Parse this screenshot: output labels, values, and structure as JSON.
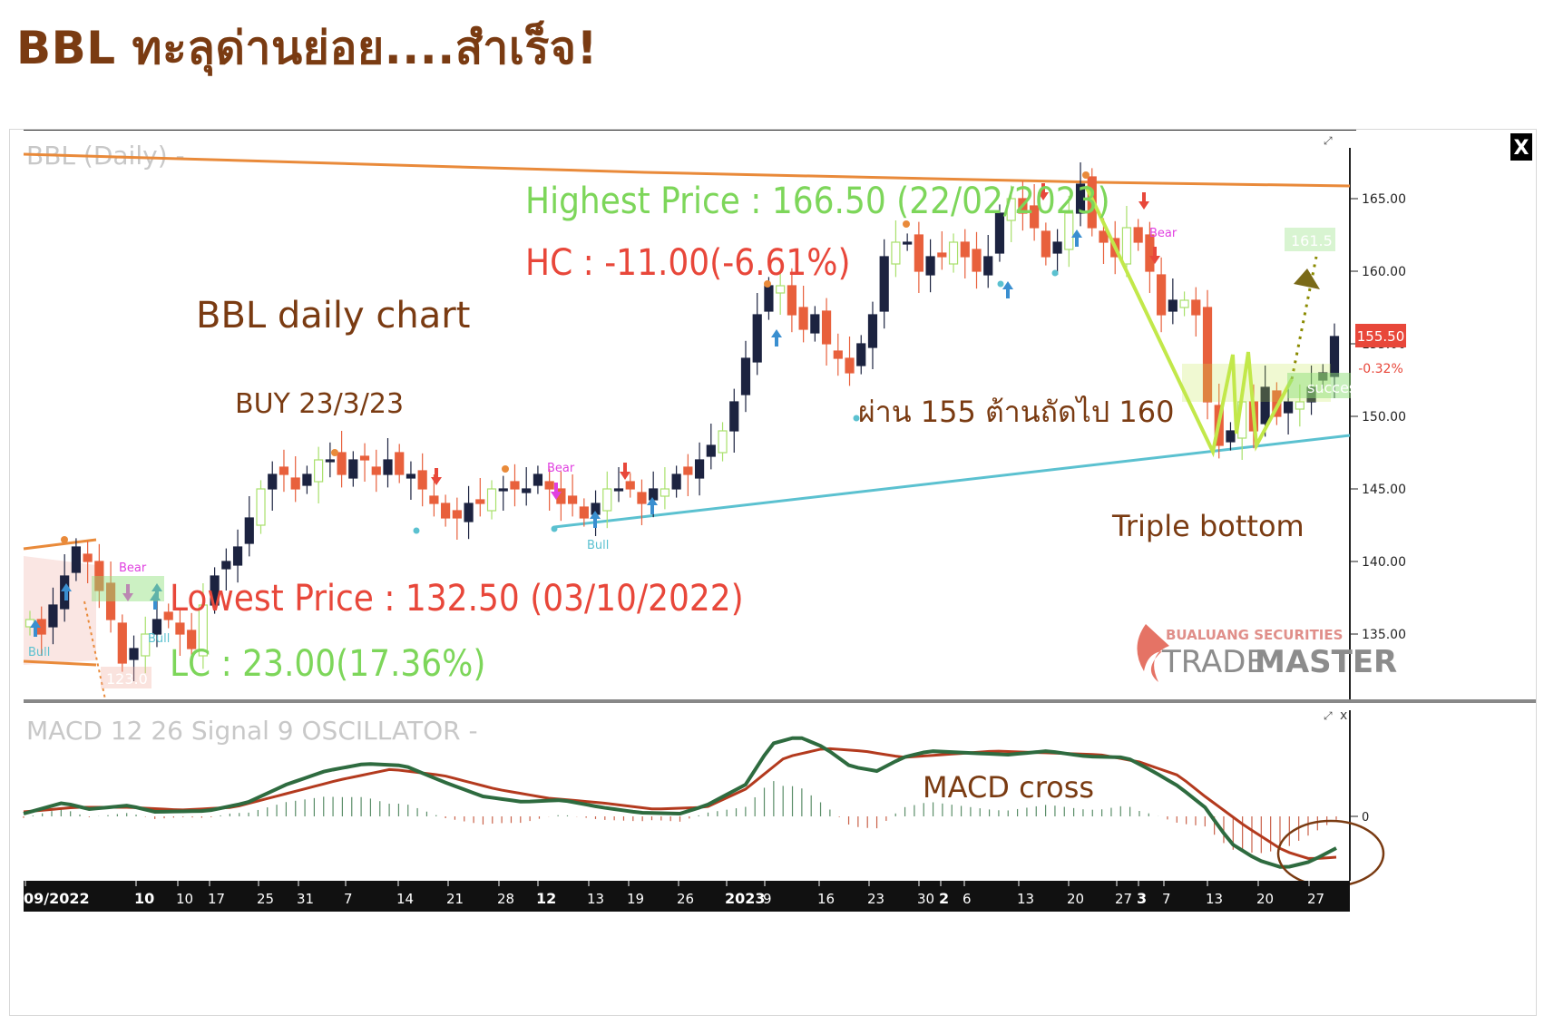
{
  "page_title": "BBL ทะลุด่านย่อย....สำเร็จ!",
  "panel": {
    "price_label": "BBL (Daily) -",
    "macd_label": "MACD 12 26 Signal 9 OSCILLATOR -",
    "close_button": "X"
  },
  "annotations": {
    "highest": "Highest Price : 166.50 (22/02/2023)",
    "hc": "HC : -11.00(-6.61%)",
    "lowest": "Lowest Price : 132.50 (03/10/2022)",
    "lc": "LC : 23.00(17.36%)",
    "daily_chart": "BBL daily chart",
    "buy": "BUY 23/3/23",
    "resist": "ผ่าน 155 ต้านถัดไป 160",
    "triple": "Triple bottom",
    "macd_cross": "MACD cross",
    "bear": "Bear",
    "bull": "Bull",
    "success": "success",
    "target_tag": "161.5",
    "stop_tag": "123.0"
  },
  "current_price": {
    "value": "155.50",
    "change": "-0.32%"
  },
  "watermark": {
    "line1": "BUALUANG SECURITIES",
    "line2a": "TRADE",
    "line2b": "MASTER"
  },
  "colors": {
    "up": "#1c2340",
    "down": "#e8603c",
    "up_alt": "#a8e06b",
    "macd": "#2e6b3f",
    "signal": "#b33a1e",
    "trend_high": "#e98a3a",
    "trend_low": "#5bc1d0",
    "pattern": "#c2e84a",
    "brown": "#7a3b12"
  },
  "chart_data": {
    "type": "candlestick",
    "title": "BBL (Daily)",
    "y_ticks": [
      "165.00",
      "160.00",
      "155.00",
      "150.00",
      "145.00",
      "140.00",
      "135.00"
    ],
    "ylim": [
      130.5,
      168.5
    ],
    "x_ticks": [
      "09/2022",
      "10",
      "10",
      "17",
      "25",
      "31",
      "7",
      "14",
      "21",
      "28",
      "12",
      "13",
      "19",
      "26",
      "2023",
      "9",
      "16",
      "23",
      "30",
      "2",
      "6",
      "13",
      "20",
      "27",
      "3",
      "7",
      "13",
      "20",
      "27"
    ],
    "close_series": [
      136,
      135,
      137,
      139,
      141,
      140,
      138,
      136,
      133,
      134,
      135,
      136,
      136,
      135,
      134,
      137,
      139,
      140,
      141,
      143,
      145,
      146,
      146,
      145,
      146,
      147,
      147,
      146,
      147,
      147,
      146,
      147,
      146,
      146,
      145,
      144,
      143,
      143,
      144,
      144,
      145,
      145,
      145,
      145,
      146,
      145,
      144,
      144,
      143,
      144,
      145,
      145,
      145,
      144,
      145,
      145,
      146,
      146,
      147,
      148,
      149,
      151,
      154,
      157,
      159,
      159,
      157,
      156,
      157,
      155,
      154,
      153,
      155,
      157,
      161,
      162,
      162,
      160,
      161,
      161,
      162,
      161,
      160,
      161,
      164,
      165,
      164,
      163,
      161,
      162,
      164,
      166,
      163,
      162,
      161,
      163,
      162,
      160,
      157,
      158,
      158,
      157,
      151,
      148,
      149,
      151,
      149,
      152,
      150,
      151,
      151,
      152,
      153,
      155.5
    ],
    "macd": {
      "oscillator_zero": 0,
      "lines": [
        "MACD",
        "Signal",
        "Oscillator"
      ]
    }
  }
}
